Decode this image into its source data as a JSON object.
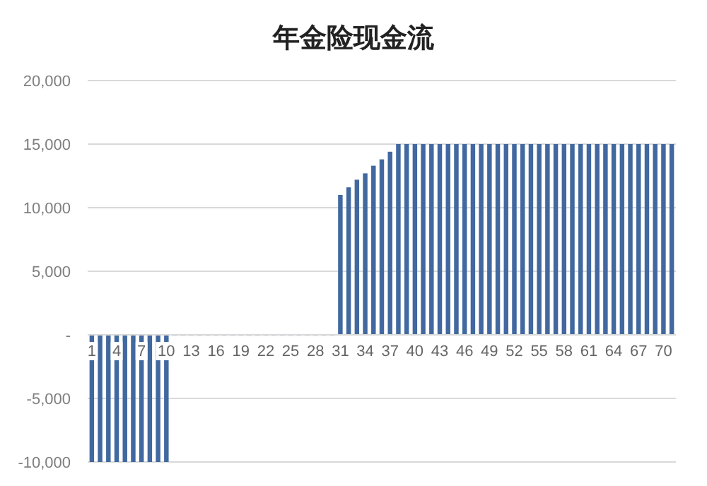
{
  "chart_data": {
    "type": "bar",
    "title": "年金险现金流",
    "categories": [
      "1",
      null,
      null,
      "4",
      null,
      null,
      "7",
      null,
      null,
      "10",
      null,
      null,
      "13",
      null,
      null,
      "16",
      null,
      null,
      "19",
      null,
      null,
      "22",
      null,
      null,
      "25",
      null,
      null,
      "28",
      null,
      null,
      "31",
      null,
      null,
      "34",
      null,
      null,
      "37",
      null,
      null,
      "40",
      null,
      null,
      "43",
      null,
      null,
      "46",
      null,
      null,
      "49",
      null,
      null,
      "52",
      null,
      null,
      "55",
      null,
      null,
      "58",
      null,
      null,
      "61",
      null,
      null,
      "64",
      null,
      null,
      "67",
      null,
      null,
      "70",
      null
    ],
    "values": [
      -10000,
      -10000,
      -10000,
      -10000,
      -10000,
      -10000,
      -10000,
      -10000,
      -10000,
      -10000,
      0,
      0,
      0,
      0,
      0,
      0,
      0,
      0,
      0,
      0,
      0,
      0,
      0,
      0,
      0,
      0,
      0,
      0,
      0,
      0,
      11000,
      11600,
      12200,
      12700,
      13300,
      13800,
      14400,
      15000,
      15000,
      15000,
      15000,
      15000,
      15000,
      15000,
      15000,
      15000,
      15000,
      15000,
      15000,
      15000,
      15000,
      15000,
      15000,
      15000,
      15000,
      15000,
      15000,
      15000,
      15000,
      15000,
      15000,
      15000,
      15000,
      15000,
      15000,
      15000,
      15000,
      15000,
      15000,
      15000,
      15000
    ],
    "color": "#41689f",
    "ylim": [
      -10000,
      20000
    ],
    "yticks": [
      {
        "value": -10000,
        "label": "-10,000"
      },
      {
        "value": -5000,
        "label": "-5,000"
      },
      {
        "value": 0,
        "label": "-"
      },
      {
        "value": 5000,
        "label": "5,000"
      },
      {
        "value": 10000,
        "label": "10,000"
      },
      {
        "value": 15000,
        "label": "15,000"
      },
      {
        "value": 20000,
        "label": "20,000"
      }
    ],
    "grid": "y"
  }
}
